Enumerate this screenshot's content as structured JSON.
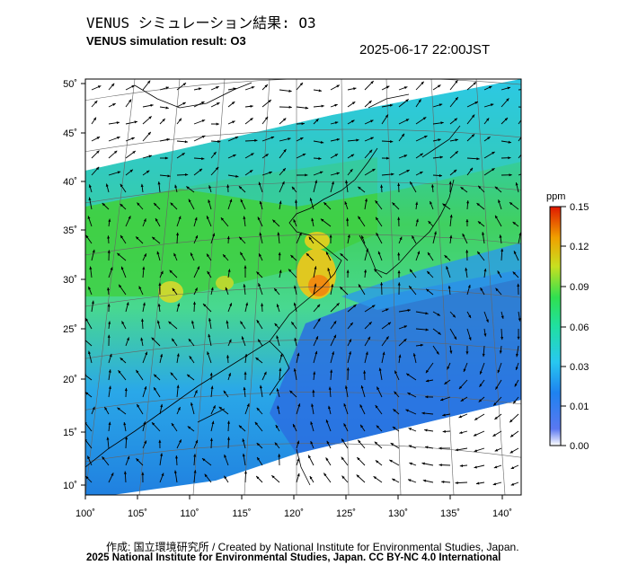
{
  "title_jp": "VENUS シミュレーション結果: O3",
  "title_en": "VENUS simulation result: O3",
  "timestamp": "2025-06-17 22:00JST",
  "credit_line_1": "作成: 国立環境研究所 / Created by National Institute for Environmental Studies, Japan.",
  "credit_line_2": "2025 National Institute for Environmental Studies, Japan. CC BY-NC 4.0 International",
  "map": {
    "lon_ticks": [
      "100˚",
      "105˚",
      "110˚",
      "115˚",
      "120˚",
      "125˚",
      "130˚",
      "135˚",
      "140˚"
    ],
    "lat_ticks": [
      "10˚",
      "15˚",
      "20˚",
      "25˚",
      "30˚",
      "35˚",
      "40˚",
      "45˚",
      "50˚"
    ]
  },
  "colorbar": {
    "unit": "ppm",
    "labels": [
      "0.15",
      "0.12",
      "0.09",
      "0.06",
      "0.03",
      "0.01",
      "0.00"
    ],
    "colors": [
      "#ffffff",
      "#1e5fe0",
      "#28c8f0",
      "#30e070",
      "#c8e020",
      "#f0a000",
      "#e02000"
    ]
  }
}
